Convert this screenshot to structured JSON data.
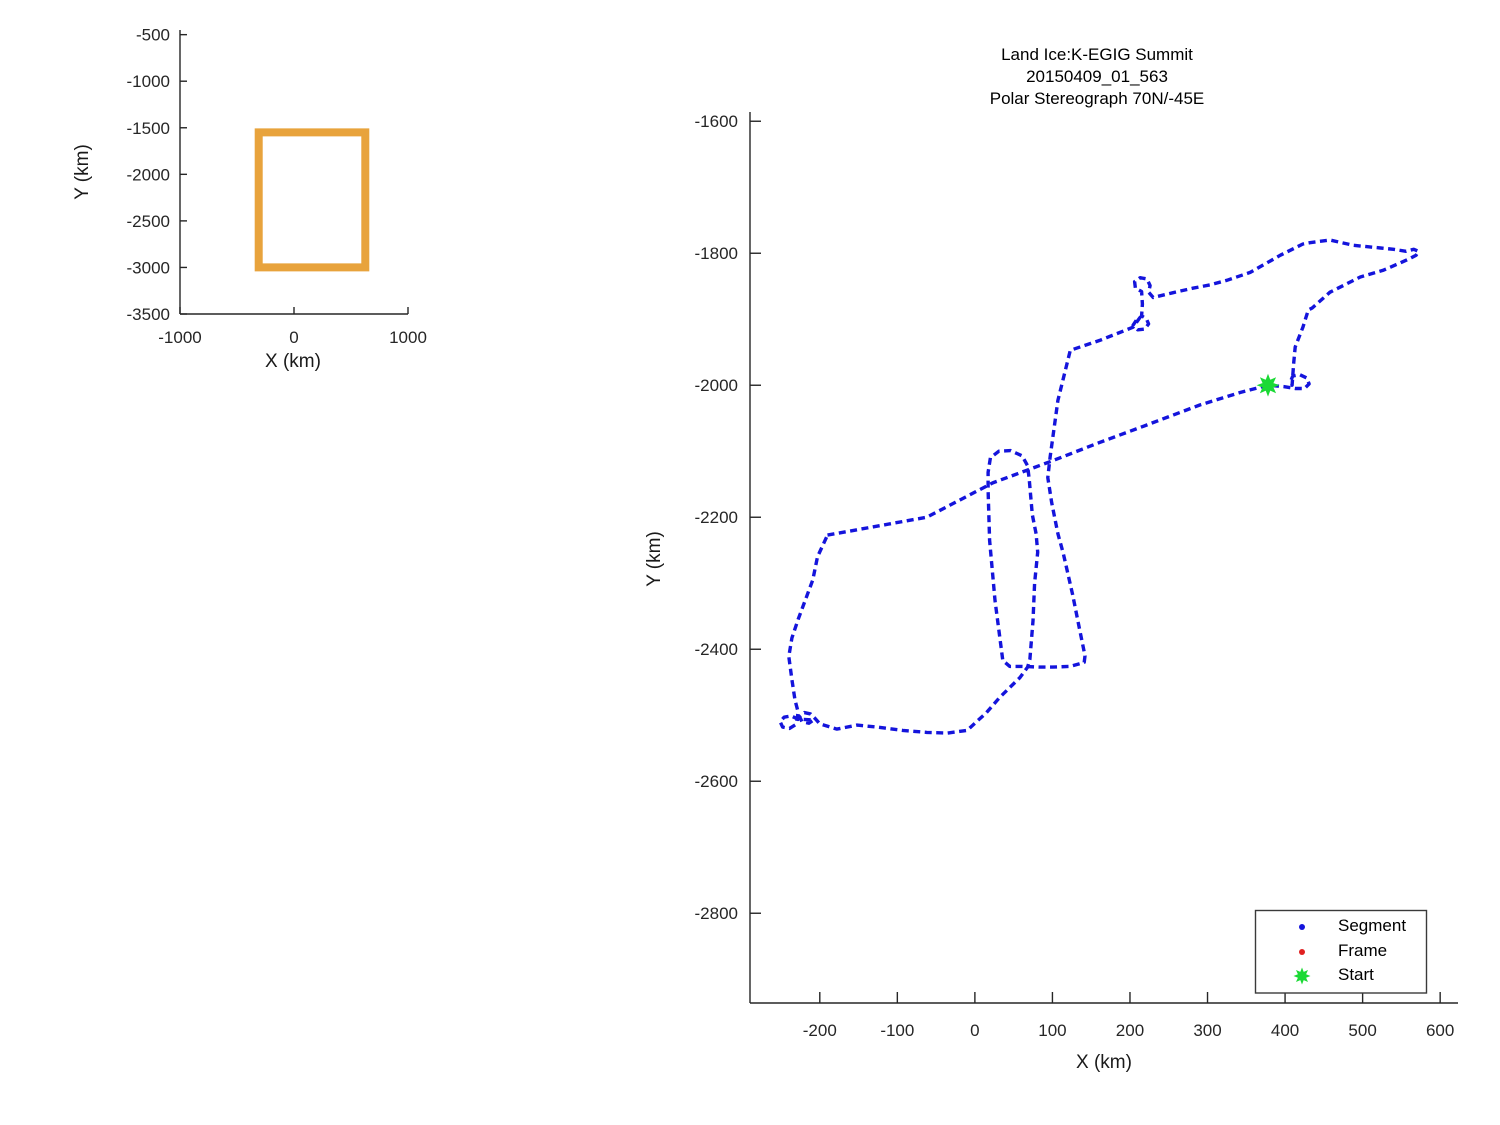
{
  "figure": {
    "background": "#ffffff",
    "axis_color": "#262626",
    "tick_label_color": "#262626"
  },
  "chart_data": [
    {
      "type": "line",
      "name": "overview-inset",
      "xlabel": "X (km)",
      "ylabel": "Y (km)",
      "xlim": [
        -1000,
        1000
      ],
      "ylim": [
        -3500,
        -450
      ],
      "x_ticks": [
        -1000,
        0,
        1000
      ],
      "y_ticks": [
        -500,
        -1000,
        -1500,
        -2000,
        -2500,
        -3000,
        -3500
      ],
      "grid": false,
      "series": [
        {
          "name": "coverage-box",
          "color": "#E8A33C",
          "stroke_width": 8,
          "closed": true,
          "points": [
            [
              -310,
              -1550
            ],
            [
              625,
              -1550
            ],
            [
              625,
              -3000
            ],
            [
              -310,
              -3000
            ]
          ]
        }
      ]
    },
    {
      "type": "scatter",
      "name": "flight-track",
      "title_lines": [
        "Land Ice:K-EGIG Summit",
        "20150409_01_563",
        "Polar Stereograph 70N/-45E"
      ],
      "xlabel": "X (km)",
      "ylabel": "Y (km)",
      "xlim": [
        -290,
        623
      ],
      "ylim": [
        -2936,
        -1586
      ],
      "x_ticks": [
        -200,
        -100,
        0,
        100,
        200,
        300,
        400,
        500,
        600
      ],
      "y_ticks": [
        -1600,
        -1800,
        -2000,
        -2200,
        -2400,
        -2600,
        -2800
      ],
      "grid": false,
      "legend": [
        {
          "label": "Segment",
          "color": "#1414DC",
          "marker": "dot"
        },
        {
          "label": "Frame",
          "color": "#E02020",
          "marker": "dot"
        },
        {
          "label": "Start",
          "color": "#1BD935",
          "marker": "star"
        }
      ],
      "legend_position": "lower right",
      "start_point": [
        378,
        -2000
      ],
      "segment_color": "#1414DC",
      "start_color": "#1BD935",
      "path": [
        [
          -190,
          -2227
        ],
        [
          -62,
          -2200
        ],
        [
          23,
          -2148
        ],
        [
          101,
          -2114
        ],
        [
          160,
          -2087
        ],
        [
          213,
          -2064
        ],
        [
          290,
          -2030
        ],
        [
          342,
          -2011
        ],
        [
          378,
          -2000
        ],
        [
          398,
          -2002
        ],
        [
          413,
          -2005
        ],
        [
          425,
          -2005
        ],
        [
          431,
          -1998
        ],
        [
          428,
          -1989
        ],
        [
          419,
          -1984
        ],
        [
          410,
          -1986
        ],
        [
          407,
          -1994
        ],
        [
          409,
          -2000
        ],
        [
          411,
          -1968
        ],
        [
          413,
          -1942
        ],
        [
          423,
          -1912
        ],
        [
          430,
          -1886
        ],
        [
          435,
          -1883
        ],
        [
          458,
          -1859
        ],
        [
          497,
          -1836
        ],
        [
          526,
          -1826
        ],
        [
          548,
          -1815
        ],
        [
          561,
          -1808
        ],
        [
          569,
          -1803
        ],
        [
          572,
          -1797
        ],
        [
          566,
          -1794
        ],
        [
          556,
          -1797
        ],
        [
          540,
          -1794
        ],
        [
          523,
          -1792
        ],
        [
          488,
          -1788
        ],
        [
          458,
          -1780
        ],
        [
          432,
          -1784
        ],
        [
          423,
          -1786
        ],
        [
          394,
          -1803
        ],
        [
          355,
          -1829
        ],
        [
          325,
          -1841
        ],
        [
          303,
          -1848
        ],
        [
          281,
          -1853
        ],
        [
          255,
          -1860
        ],
        [
          230,
          -1867
        ],
        [
          224,
          -1859
        ],
        [
          226,
          -1849
        ],
        [
          222,
          -1839
        ],
        [
          213,
          -1837
        ],
        [
          206,
          -1843
        ],
        [
          207,
          -1853
        ],
        [
          215,
          -1858
        ],
        [
          216,
          -1877
        ],
        [
          215,
          -1895
        ],
        [
          221,
          -1899
        ],
        [
          224,
          -1907
        ],
        [
          219,
          -1915
        ],
        [
          210,
          -1916
        ],
        [
          204,
          -1909
        ],
        [
          209,
          -1900
        ],
        [
          213,
          -1897
        ],
        [
          204,
          -1912
        ],
        [
          161,
          -1932
        ],
        [
          123,
          -1947
        ],
        [
          107,
          -2023
        ],
        [
          97,
          -2109
        ],
        [
          94,
          -2140
        ],
        [
          99,
          -2178
        ],
        [
          107,
          -2225
        ],
        [
          114,
          -2255
        ],
        [
          126,
          -2317
        ],
        [
          135,
          -2370
        ],
        [
          142,
          -2410
        ],
        [
          141,
          -2420
        ],
        [
          123,
          -2426
        ],
        [
          100,
          -2427
        ],
        [
          84,
          -2427
        ],
        [
          60,
          -2426
        ],
        [
          45,
          -2426
        ],
        [
          36,
          -2417
        ],
        [
          26,
          -2326
        ],
        [
          19,
          -2235
        ],
        [
          17,
          -2159
        ],
        [
          17,
          -2132
        ],
        [
          20,
          -2110
        ],
        [
          31,
          -2100
        ],
        [
          46,
          -2099
        ],
        [
          61,
          -2107
        ],
        [
          68,
          -2122
        ],
        [
          70,
          -2142
        ],
        [
          74,
          -2196
        ],
        [
          79,
          -2225
        ],
        [
          81,
          -2253
        ],
        [
          77,
          -2300
        ],
        [
          75,
          -2357
        ],
        [
          71,
          -2415
        ],
        [
          68,
          -2427
        ],
        [
          58,
          -2443
        ],
        [
          32,
          -2473
        ],
        [
          15,
          -2496
        ],
        [
          -10,
          -2523
        ],
        [
          -36,
          -2527
        ],
        [
          -62,
          -2526
        ],
        [
          -93,
          -2523
        ],
        [
          -126,
          -2518
        ],
        [
          -152,
          -2515
        ],
        [
          -178,
          -2521
        ],
        [
          -200,
          -2513
        ],
        [
          -206,
          -2505
        ],
        [
          -212,
          -2498
        ],
        [
          -220,
          -2496
        ],
        [
          -226,
          -2502
        ],
        [
          -223,
          -2510
        ],
        [
          -214,
          -2512
        ],
        [
          -208,
          -2507
        ],
        [
          -228,
          -2506
        ],
        [
          -237,
          -2501
        ],
        [
          -246,
          -2503
        ],
        [
          -251,
          -2510
        ],
        [
          -248,
          -2518
        ],
        [
          -239,
          -2520
        ],
        [
          -231,
          -2514
        ],
        [
          -229,
          -2504
        ],
        [
          -228,
          -2495
        ],
        [
          -232,
          -2477
        ],
        [
          -236,
          -2446
        ],
        [
          -240,
          -2411
        ],
        [
          -236,
          -2383
        ],
        [
          -228,
          -2355
        ],
        [
          -209,
          -2295
        ],
        [
          -203,
          -2260
        ],
        [
          -190,
          -2227
        ]
      ]
    }
  ]
}
